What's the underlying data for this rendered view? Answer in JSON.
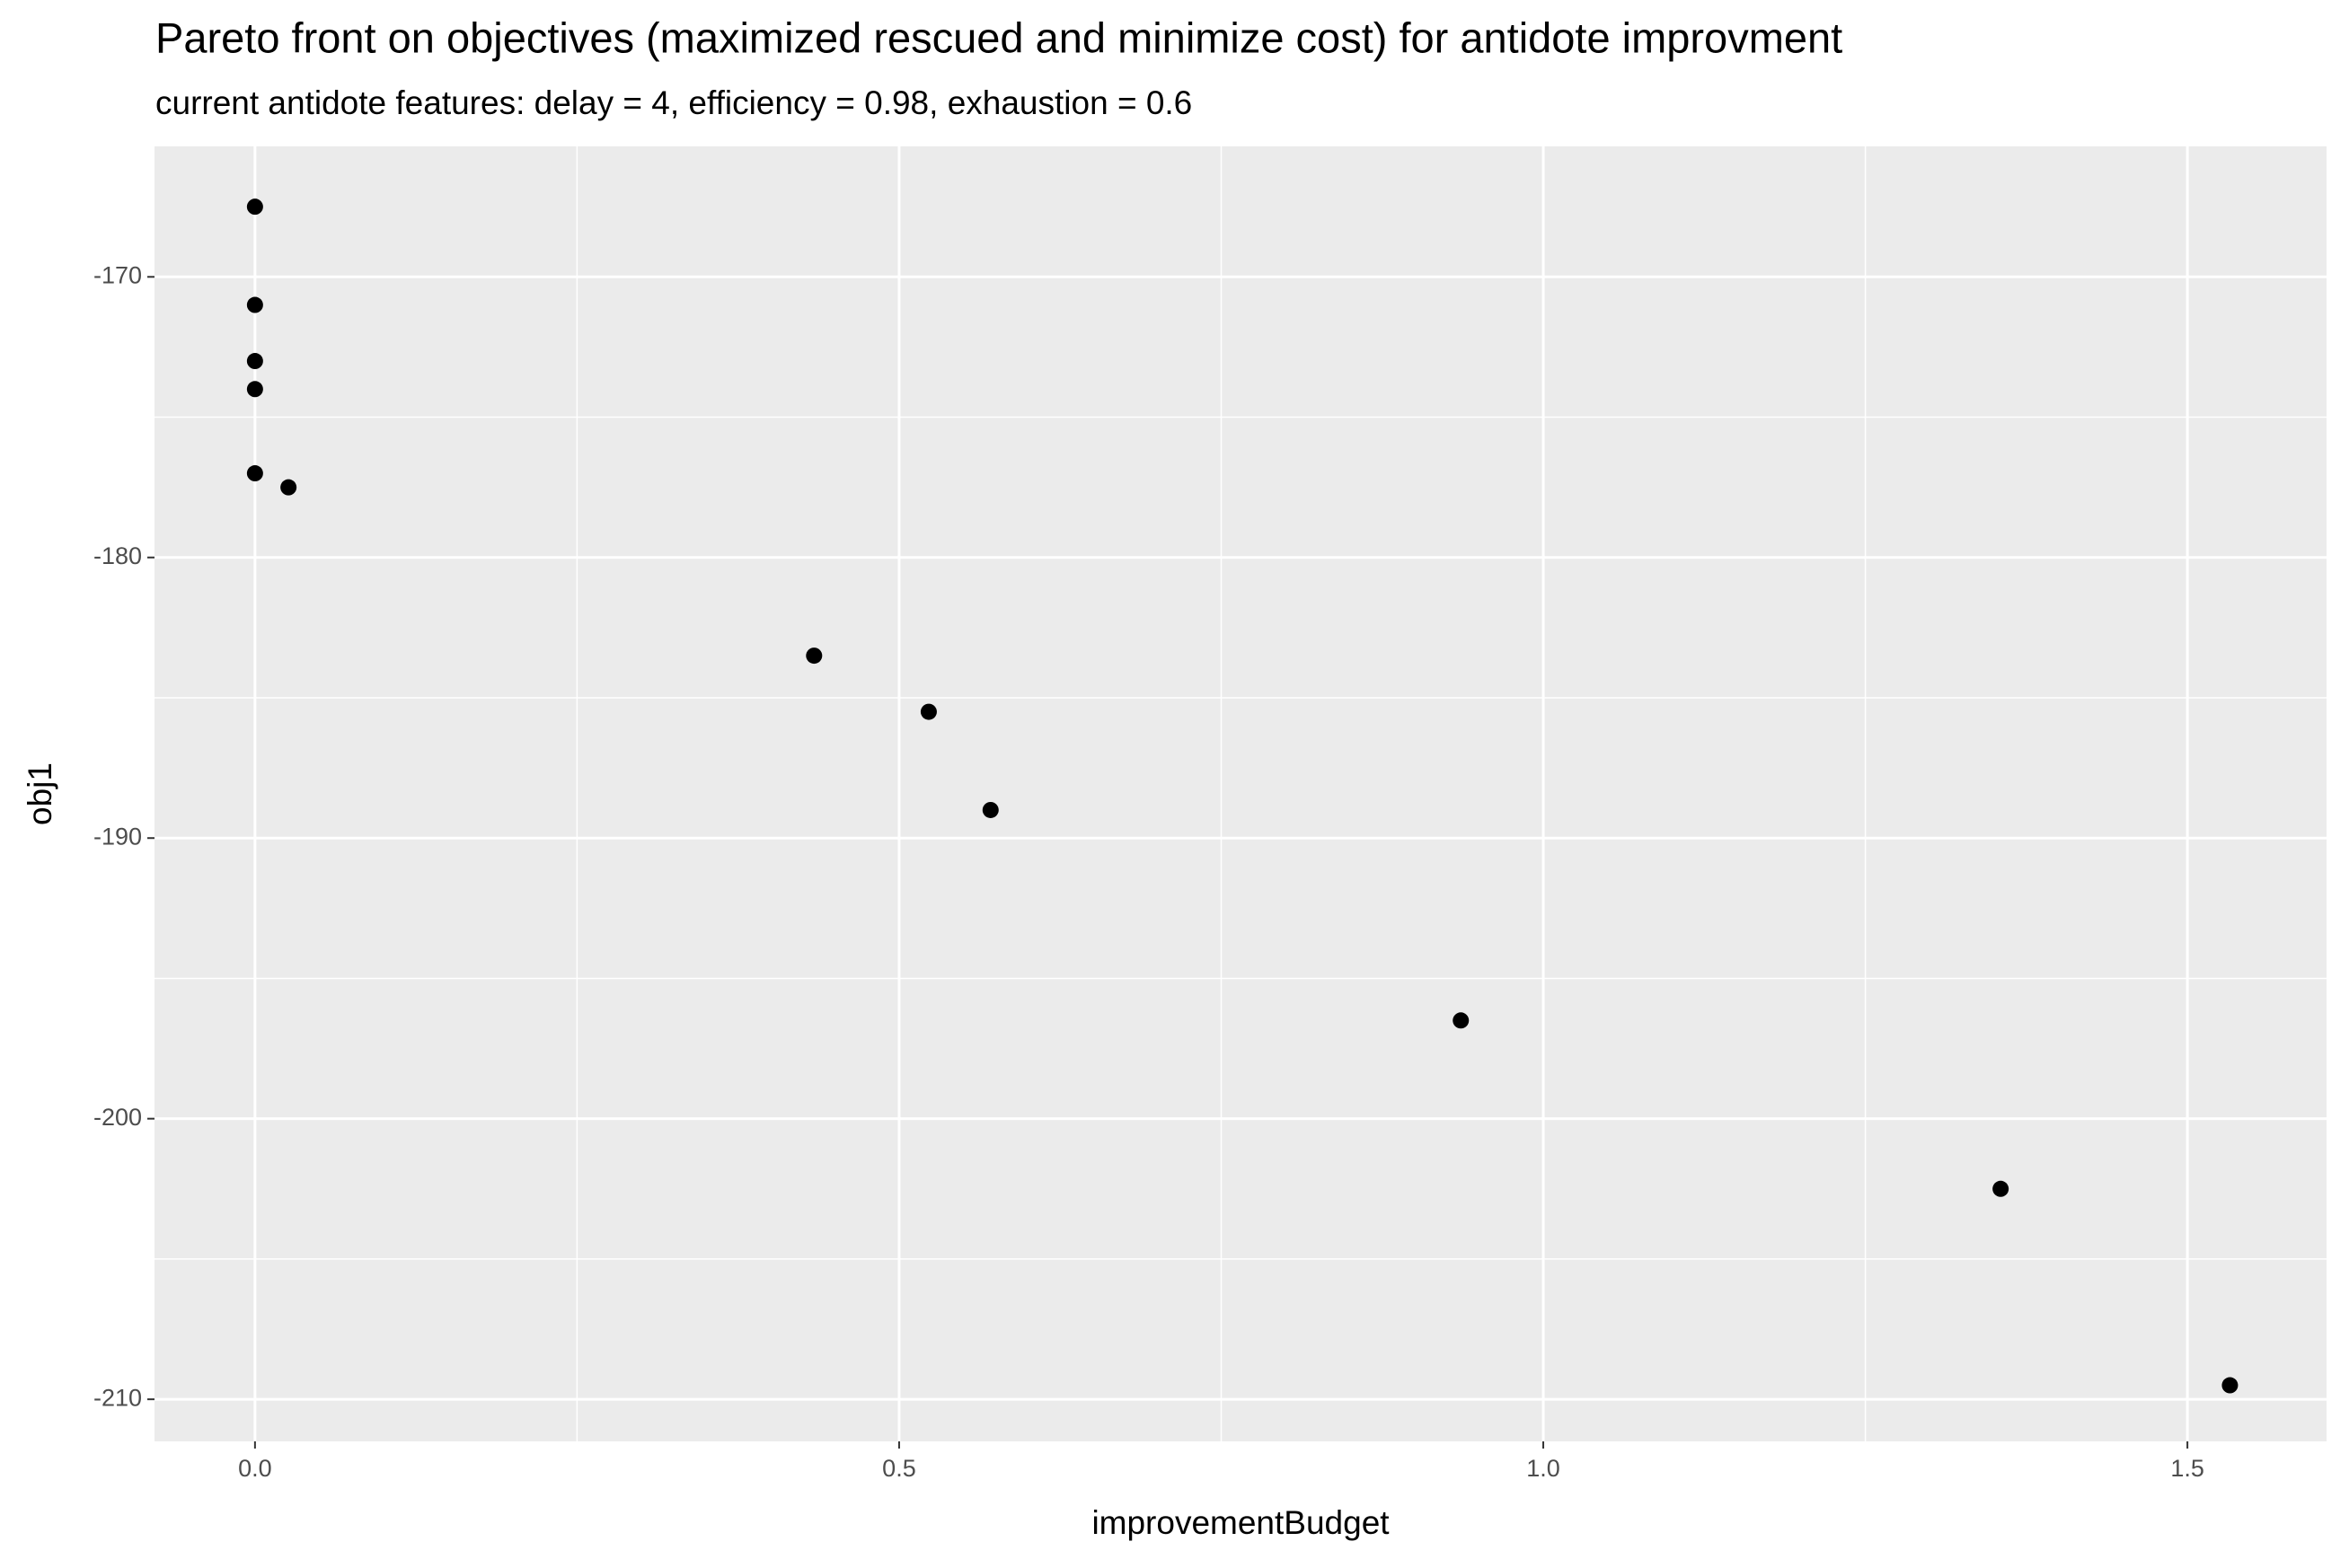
{
  "chart_data": {
    "type": "scatter",
    "title": "Pareto front on objectives (maximized rescued and minimize cost) for antidote improvment",
    "subtitle": "current antidote features: delay = 4, efficiency = 0.98, exhaustion = 0.6",
    "x_label": "improvementBudget",
    "y_label": "obj1",
    "x": [
      0,
      0,
      0,
      0,
      0,
      0.026,
      0.434,
      0.523,
      0.571,
      0.936,
      1.355,
      1.533
    ],
    "values": [
      -167.5,
      -171.0,
      -173.0,
      -174.0,
      -177.0,
      -177.5,
      -183.5,
      -185.5,
      -189.0,
      -196.5,
      -202.5,
      -209.5
    ],
    "color": "#000000",
    "xlim": [
      -0.078,
      1.608
    ],
    "ylim": [
      -211.5,
      -165.35
    ],
    "xticks": [
      {
        "value": 0,
        "label": "0.0"
      },
      {
        "value": 0.5,
        "label": "0.5"
      },
      {
        "value": 1,
        "label": "1.0"
      },
      {
        "value": 1.5,
        "label": "1.5"
      }
    ],
    "yticks": [
      -210,
      -200,
      -190,
      -180,
      -170
    ],
    "x_minor_grid": [
      0.25,
      0.75,
      1.25
    ],
    "y_minor_grid": [
      -205,
      -195,
      -185,
      -175
    ],
    "grid": true
  }
}
